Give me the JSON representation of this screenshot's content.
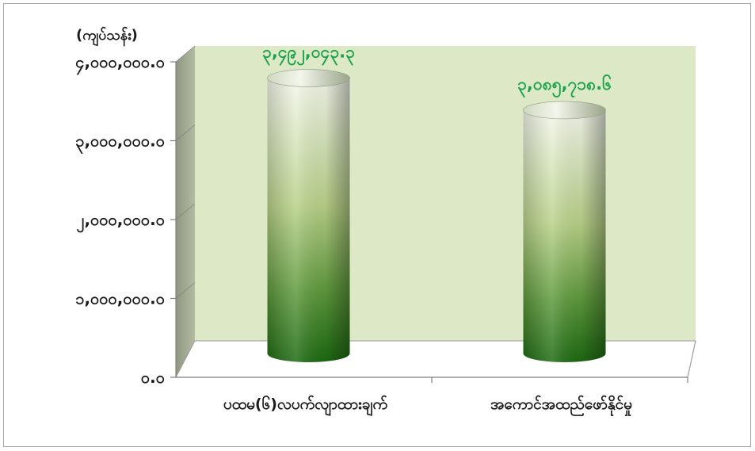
{
  "chart_data": {
    "type": "bar",
    "style": "3d-cylinder",
    "unit_label": "(ကျပ်သန်း)",
    "categories": [
      "ပထမ(၆)လပက်လျာထားချက်",
      "အကောင်အထည်ဖော်နိုင်မှု"
    ],
    "category_labels": [
      "ပထမ(၆)လပက်လျာထားချက်",
      "အကောင်အထည်ဖော်နိုင်မှု"
    ],
    "values": [
      3492043.3,
      3085718.6
    ],
    "data_labels": [
      "၃,၄၉၂,၀၄၃.၃",
      "၃,၀၈၅,၇၁၈.၆"
    ],
    "ylim": [
      0,
      4000000
    ],
    "y_ticks": [
      0,
      1000000,
      2000000,
      3000000,
      4000000
    ],
    "y_tick_labels": [
      "၀.၀",
      "၁,၀၀၀,၀၀၀.၀",
      "၂,၀၀၀,၀၀၀.၀",
      "၃,၀၀၀,၀၀၀.၀",
      "၄,၀၀၀,၀၀၀.၀"
    ],
    "grid": false,
    "legend": "none",
    "colors": {
      "plot_back": "#dde8c6",
      "plot_side": "#9aa48a",
      "plot_floor": "#ffffff",
      "bar_top": "#eef4e2",
      "bar_dark": "#1f6b12",
      "data_label": "#1aa24a",
      "axis": "#7f7f7f"
    }
  }
}
